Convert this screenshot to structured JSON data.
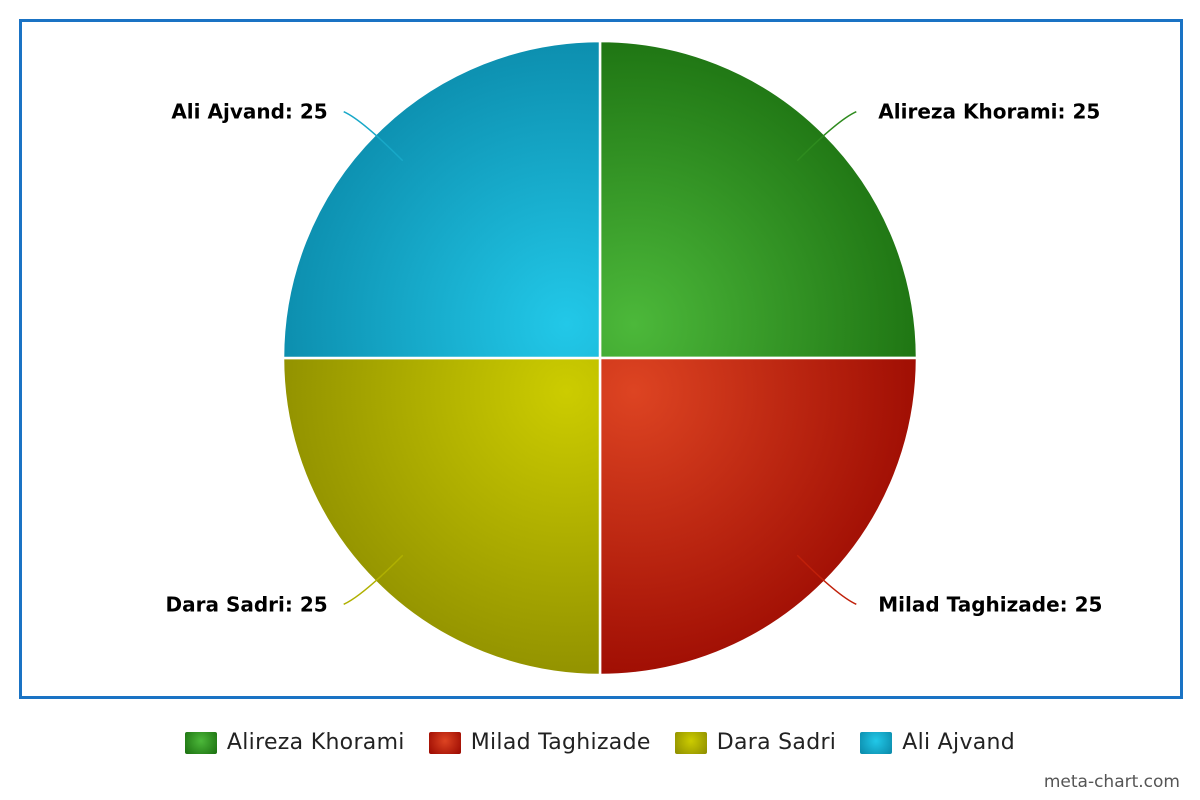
{
  "chart_data": {
    "type": "pie",
    "slices": [
      {
        "name": "Alireza Khorami",
        "value": 25,
        "label": "Alireza Khorami: 25",
        "color": "#2e8b1e",
        "color_light": "#4cb83a",
        "color_dark": "#1a6e0f"
      },
      {
        "name": "Milad Taghizade",
        "value": 25,
        "label": "Milad Taghizade: 25",
        "color": "#c0200a",
        "color_light": "#dd4422",
        "color_dark": "#990800"
      },
      {
        "name": "Dara Sadri",
        "value": 25,
        "label": "Dara Sadri: 25",
        "color": "#b0b000",
        "color_light": "#cccc00",
        "color_dark": "#8c8c00"
      },
      {
        "name": "Ali Ajvand",
        "value": 25,
        "label": "Ali Ajvand: 25",
        "color": "#18a8c8",
        "color_light": "#22c8e8",
        "color_dark": "#0a88a8"
      }
    ],
    "legend_position": "bottom"
  },
  "frame_color": "#1a73c4",
  "credit": "meta-chart.com"
}
